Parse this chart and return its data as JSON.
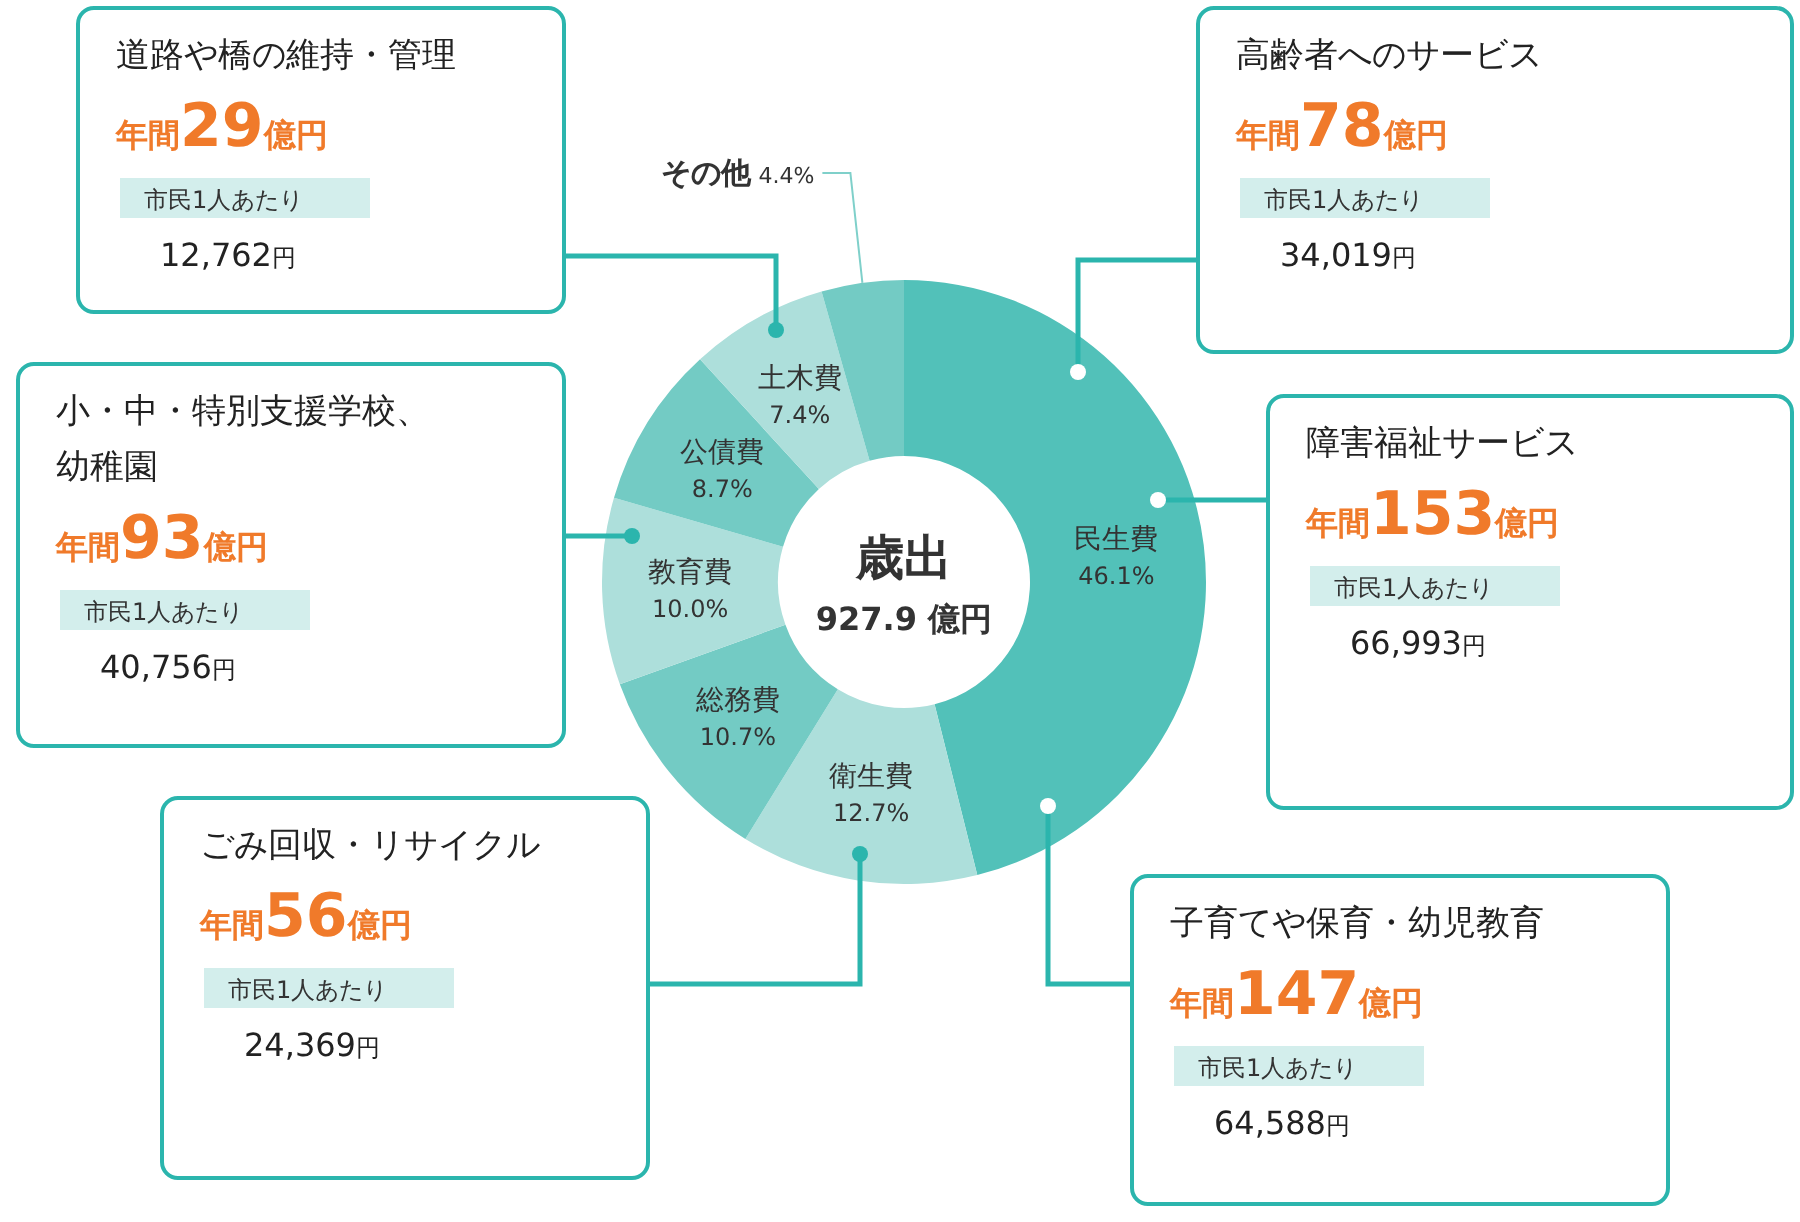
{
  "chart_data": {
    "type": "donut",
    "title": "歳出",
    "subtitle": "927.9 億円",
    "categories": [
      "民生費",
      "衛生費",
      "総務費",
      "教育費",
      "公債費",
      "土木費",
      "その他"
    ],
    "values": [
      46.1,
      12.7,
      10.7,
      10.0,
      8.7,
      7.4,
      4.4
    ],
    "value_labels": [
      "46.1%",
      "12.7%",
      "10.7%",
      "10.0%",
      "8.7%",
      "7.4%",
      "4.4%"
    ],
    "colors": [
      "#52c1b9",
      "#addfdb",
      "#73cbc4",
      "#addfdb",
      "#73cbc4",
      "#addfdb",
      "#73cbc4"
    ],
    "annotations": [
      "道路や橋の維持・管理",
      "年間29億円",
      "市民1人あたり",
      "12,762円",
      "小・中・特別支援学校、幼稚園",
      "年間93億円",
      "市民1人あたり",
      "40,756円",
      "ごみ回収・リサイクル",
      "年間56億円",
      "市民1人あたり",
      "24,369円",
      "高齢者へのサービス",
      "年間78億円",
      "市民1人あたり",
      "34,019円",
      "障害福祉サービス",
      "年間153億円",
      "市民1人あたり",
      "66,993円",
      "子育てや保育・幼児教育",
      "年間147億円",
      "市民1人あたり",
      "64,588円"
    ]
  }
}
